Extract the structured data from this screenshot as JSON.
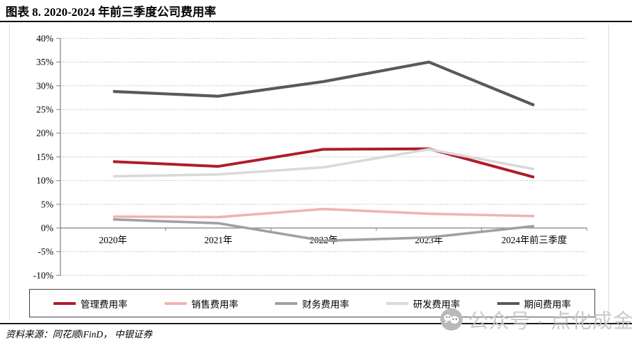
{
  "header": {
    "title": "图表 8. 2020-2024 年前三季度公司费用率"
  },
  "source": {
    "text": "资料来源：同花顺iFinD， 中银证券"
  },
  "watermark": {
    "icon": "wechat-icon",
    "text": "公众号 · 点化成金"
  },
  "chart_data": {
    "type": "line",
    "title": "图表 8. 2020-2024 年前三季度公司费用率",
    "categories": [
      "2020年",
      "2021年",
      "2022年",
      "2023年",
      "2024年前三季度"
    ],
    "series": [
      {
        "name": "管理费用率",
        "color": "#b01c28",
        "width": 4,
        "values": [
          14.0,
          13.0,
          16.6,
          16.7,
          10.7
        ]
      },
      {
        "name": "销售费用率",
        "color": "#f0b2b0",
        "width": 3.6,
        "values": [
          2.4,
          2.3,
          4.0,
          3.0,
          2.5
        ]
      },
      {
        "name": "财务费用率",
        "color": "#a0a0a0",
        "width": 3.6,
        "values": [
          1.8,
          1.0,
          -2.7,
          -2.0,
          0.4
        ]
      },
      {
        "name": "研发费用率",
        "color": "#d9d9d9",
        "width": 3.6,
        "values": [
          10.9,
          11.3,
          12.8,
          16.6,
          12.4
        ]
      },
      {
        "name": "期间费用率",
        "color": "#595959",
        "width": 4.2,
        "values": [
          28.8,
          27.8,
          30.9,
          35.0,
          25.9
        ]
      }
    ],
    "ylim": [
      -10,
      40
    ],
    "ytick_step": 5,
    "ytick_labels": [
      "40%",
      "35%",
      "30%",
      "25%",
      "20%",
      "15%",
      "10%",
      "5%",
      "0%",
      "-5%",
      "-10%"
    ],
    "grid": "horizontal-dotted",
    "legend_position": "bottom-boxed",
    "colors": {
      "gridline": "#b8b8b8",
      "axis": "#7f7f7f",
      "frame": "#dcdcdc"
    }
  }
}
